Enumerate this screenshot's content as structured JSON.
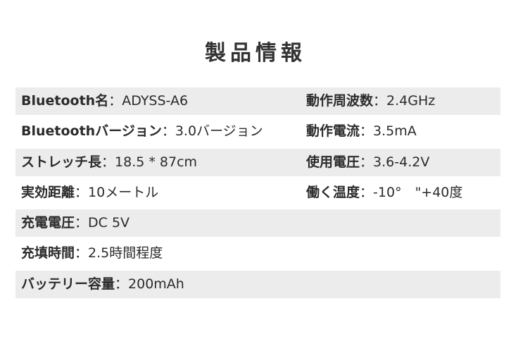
{
  "title": "製品情報",
  "separator": "：",
  "rows": [
    {
      "left": {
        "label": "Bluetooth名",
        "value": "ADYSS-A6"
      },
      "right": {
        "label": "動作周波数",
        "value": "2.4GHz"
      }
    },
    {
      "left": {
        "label": "Bluetoothバージョン",
        "value": "3.0バージョン"
      },
      "right": {
        "label": "動作電流",
        "value": "3.5mA"
      }
    },
    {
      "left": {
        "label": "ストレッチ長",
        "value": "18.5 * 87cm"
      },
      "right": {
        "label": "使用電圧",
        "value": "3.6-4.2V"
      }
    },
    {
      "left": {
        "label": "実効距離",
        "value": "10メートル"
      },
      "right": {
        "label": "働く温度",
        "value": "-10°　\"+40度"
      }
    },
    {
      "left": {
        "label": "充電電圧",
        "value": "DC 5V"
      }
    },
    {
      "left": {
        "label": "充填時間",
        "value": "2.5時間程度"
      }
    },
    {
      "left": {
        "label": "バッテリー容量",
        "value": "200mAh"
      }
    }
  ],
  "colors": {
    "band": "#ececec",
    "text": "#2b2b2b"
  }
}
